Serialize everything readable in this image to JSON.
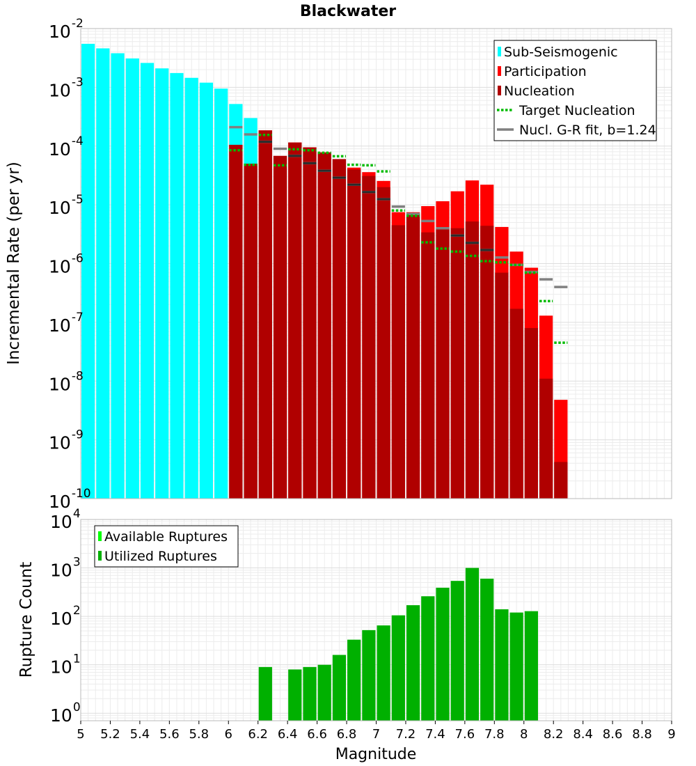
{
  "chart_data": [
    {
      "type": "bar",
      "title": "Blackwater",
      "xlabel": "",
      "ylabel": "Incremental Rate (per yr)",
      "yscale": "log",
      "ylim": [
        1e-10,
        0.01
      ],
      "xlim": [
        5,
        9
      ],
      "grid": true,
      "legend_position": "top-right",
      "y_tick_labels": [
        {
          "base": "10",
          "exp": "-2"
        },
        {
          "base": "10",
          "exp": "-3"
        },
        {
          "base": "10",
          "exp": "-4"
        },
        {
          "base": "10",
          "exp": "-5"
        },
        {
          "base": "10",
          "exp": "-6"
        },
        {
          "base": "10",
          "exp": "-7"
        },
        {
          "base": "10",
          "exp": "-8"
        },
        {
          "base": "10",
          "exp": "-9"
        },
        {
          "base": "10",
          "exp": "-10"
        }
      ],
      "series": [
        {
          "name": "Sub-Seismogenic",
          "kind": "bar",
          "color": "#00ffff",
          "x": [
            5.05,
            5.15,
            5.25,
            5.35,
            5.45,
            5.55,
            5.65,
            5.75,
            5.85,
            5.95,
            6.05,
            6.15
          ],
          "values": [
            0.0055,
            0.0046,
            0.0038,
            0.0031,
            0.0026,
            0.0021,
            0.00175,
            0.00145,
            0.0012,
            0.00095,
            0.00052,
            0.0003
          ]
        },
        {
          "name": "Participation",
          "kind": "bar",
          "color": "#ff0000",
          "x": [
            6.05,
            6.15,
            6.25,
            6.35,
            6.45,
            6.55,
            6.65,
            6.75,
            6.85,
            6.95,
            7.05,
            7.15,
            7.25,
            7.35,
            7.45,
            7.55,
            7.65,
            7.75,
            7.85,
            7.95,
            8.05,
            8.15,
            8.25
          ],
          "values": [
            0.000105,
            5e-05,
            0.000185,
            6.8e-05,
            0.000115,
            9.5e-05,
            7.8e-05,
            6e-05,
            4.3e-05,
            3.6e-05,
            2.55e-05,
            7.5e-06,
            7.5e-06,
            9.5e-06,
            1.15e-05,
            1.7e-05,
            2.6e-05,
            2.2e-05,
            4.2e-06,
            1.6e-06,
            8.5e-07,
            1.3e-07,
            4.8e-09
          ]
        },
        {
          "name": "Nucleation",
          "kind": "bar",
          "color": "#b00000",
          "x": [
            6.05,
            6.15,
            6.25,
            6.35,
            6.45,
            6.55,
            6.65,
            6.75,
            6.85,
            6.95,
            7.05,
            7.15,
            7.25,
            7.35,
            7.45,
            7.55,
            7.65,
            7.75,
            7.85,
            7.95,
            8.05,
            8.15,
            8.25
          ],
          "values": [
            0.000105,
            5e-05,
            0.000185,
            6.8e-05,
            0.000115,
            9.5e-05,
            7.8e-05,
            6e-05,
            4e-05,
            3.1e-05,
            2e-05,
            4.5e-06,
            6.8e-06,
            3.4e-06,
            4e-06,
            4e-06,
            5.2e-06,
            4.4e-06,
            7e-07,
            1.7e-07,
            8e-08,
            1.1e-08,
            4.2e-10
          ]
        },
        {
          "name": "Target Nucleation",
          "kind": "segment",
          "color": "#00bb00",
          "x": [
            6.05,
            6.15,
            6.25,
            6.35,
            6.45,
            6.55,
            6.65,
            6.75,
            6.85,
            6.95,
            7.05,
            7.15,
            7.25,
            7.35,
            7.45,
            7.55,
            7.65,
            7.75,
            7.85,
            7.95,
            8.05,
            8.15,
            8.25
          ],
          "values": [
            8.5e-05,
            4.8e-05,
            0.000155,
            4.7e-05,
            8.8e-05,
            8.5e-05,
            7.7e-05,
            6.7e-05,
            4.8e-05,
            4.7e-05,
            3.7e-05,
            8e-06,
            6.5e-06,
            2.3e-06,
            1.8e-06,
            1.6e-06,
            1.35e-06,
            1.1e-06,
            1.05e-06,
            9.5e-07,
            7e-07,
            2.3e-07,
            4.5e-08
          ]
        },
        {
          "name": "Nucl. G-R fit, b=1.24",
          "kind": "segment",
          "color": "#808080",
          "x": [
            6.05,
            6.15,
            6.25,
            6.35,
            6.45,
            6.55,
            6.65,
            6.75,
            6.85,
            6.95,
            7.05,
            7.15,
            7.25,
            7.35,
            7.45,
            7.55,
            7.65,
            7.75,
            7.85,
            7.95,
            8.05,
            8.15,
            8.25
          ],
          "values": [
            0.00021,
            0.000158,
            0.000118,
            9e-05,
            6.8e-05,
            5.1e-05,
            3.8e-05,
            2.9e-05,
            2.2e-05,
            1.65e-05,
            1.25e-05,
            9.3e-06,
            7e-06,
            5.3e-06,
            4e-06,
            3e-06,
            2.25e-06,
            1.7e-06,
            1.27e-06,
            9.5e-07,
            7.2e-07,
            5.4e-07,
            4e-07
          ]
        }
      ]
    },
    {
      "type": "bar",
      "title": "",
      "xlabel": "Magnitude",
      "ylabel": "Rupture Count",
      "yscale": "log",
      "ylim": [
        0.7,
        10000
      ],
      "xlim": [
        5,
        9
      ],
      "grid": true,
      "legend_position": "top-left",
      "x_ticks": [
        "5",
        "5.2",
        "5.4",
        "5.6",
        "5.8",
        "6",
        "6.2",
        "6.4",
        "6.6",
        "6.8",
        "7",
        "7.2",
        "7.4",
        "7.6",
        "7.8",
        "8",
        "8.2",
        "8.4",
        "8.6",
        "8.8",
        "9"
      ],
      "y_tick_labels": [
        {
          "base": "10",
          "exp": "4"
        },
        {
          "base": "10",
          "exp": "3"
        },
        {
          "base": "10",
          "exp": "2"
        },
        {
          "base": "10",
          "exp": "1"
        },
        {
          "base": "10",
          "exp": "0"
        }
      ],
      "series": [
        {
          "name": "Available Ruptures",
          "kind": "bar",
          "color": "#00ff00",
          "x": [
            6.25,
            6.45,
            6.55,
            6.65,
            6.75,
            6.85,
            6.95,
            7.05,
            7.15,
            7.25,
            7.35,
            7.45,
            7.55,
            7.65,
            7.75,
            7.85,
            7.95,
            8.05
          ],
          "values": [
            9,
            8,
            9,
            10,
            16,
            33,
            52,
            65,
            105,
            170,
            260,
            390,
            540,
            1000,
            600,
            140,
            120,
            128
          ]
        },
        {
          "name": "Utilized Ruptures",
          "kind": "bar",
          "color": "#00b000",
          "x": [
            6.25,
            6.45,
            6.55,
            6.65,
            6.75,
            6.85,
            6.95,
            7.05,
            7.15,
            7.25,
            7.35,
            7.45,
            7.55,
            7.65,
            7.75,
            7.85,
            7.95,
            8.05
          ],
          "values": [
            9,
            8,
            9,
            10,
            16,
            33,
            52,
            65,
            105,
            170,
            260,
            390,
            540,
            1000,
            600,
            140,
            120,
            128
          ]
        }
      ]
    }
  ]
}
